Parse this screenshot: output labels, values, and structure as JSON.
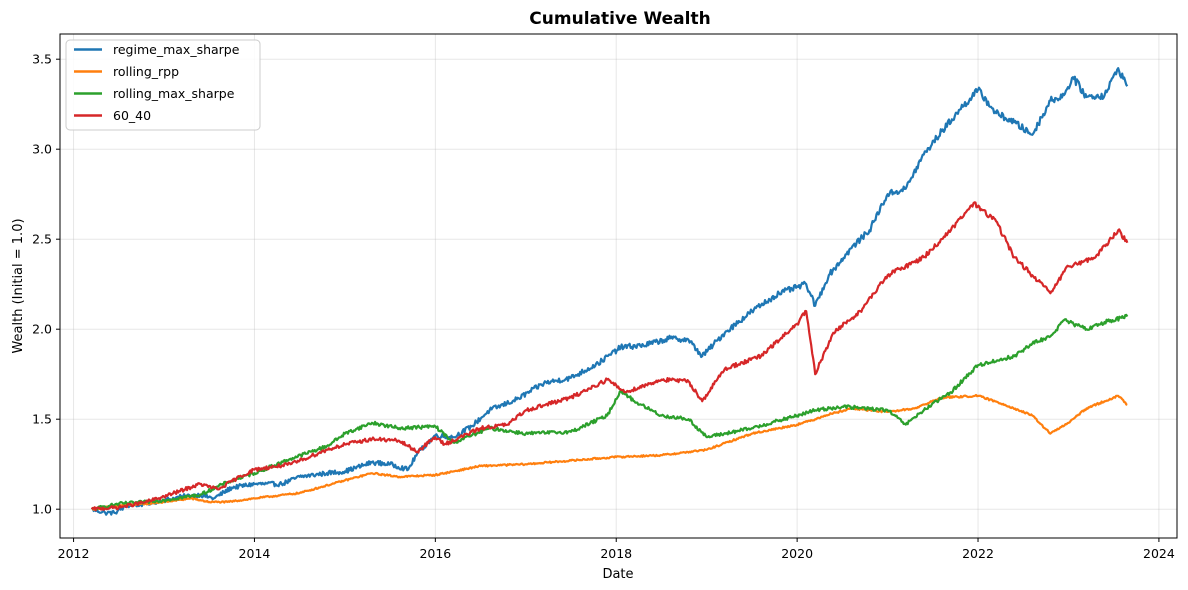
{
  "chart_data": {
    "type": "line",
    "title": "Cumulative Wealth",
    "xlabel": "Date",
    "ylabel": "Wealth (Initial = 1.0)",
    "xlim": [
      2011.85,
      2024.2
    ],
    "ylim": [
      0.84,
      3.64
    ],
    "x_ticks": [
      2012,
      2014,
      2016,
      2018,
      2020,
      2022,
      2024
    ],
    "y_ticks": [
      "1.0",
      "1.5",
      "2.0",
      "2.5",
      "3.0",
      "3.5"
    ],
    "grid": true,
    "legend_position": "top-left",
    "series": [
      {
        "name": "regime_max_sharpe",
        "color": "#1f77b4",
        "points": [
          [
            2012.2,
            1.0
          ],
          [
            2012.35,
            0.98
          ],
          [
            2012.45,
            0.98
          ],
          [
            2012.6,
            1.02
          ],
          [
            2012.8,
            1.03
          ],
          [
            2013.0,
            1.05
          ],
          [
            2013.2,
            1.07
          ],
          [
            2013.4,
            1.08
          ],
          [
            2013.55,
            1.06
          ],
          [
            2013.75,
            1.12
          ],
          [
            2014.0,
            1.14
          ],
          [
            2014.3,
            1.14
          ],
          [
            2014.5,
            1.18
          ],
          [
            2014.8,
            1.2
          ],
          [
            2015.0,
            1.21
          ],
          [
            2015.3,
            1.26
          ],
          [
            2015.5,
            1.25
          ],
          [
            2015.7,
            1.22
          ],
          [
            2015.8,
            1.31
          ],
          [
            2016.0,
            1.41
          ],
          [
            2016.2,
            1.4
          ],
          [
            2016.4,
            1.46
          ],
          [
            2016.6,
            1.55
          ],
          [
            2016.9,
            1.61
          ],
          [
            2017.2,
            1.7
          ],
          [
            2017.5,
            1.73
          ],
          [
            2017.8,
            1.81
          ],
          [
            2018.05,
            1.9
          ],
          [
            2018.3,
            1.91
          ],
          [
            2018.6,
            1.95
          ],
          [
            2018.8,
            1.94
          ],
          [
            2018.95,
            1.85
          ],
          [
            2019.2,
            1.98
          ],
          [
            2019.5,
            2.1
          ],
          [
            2019.8,
            2.2
          ],
          [
            2020.1,
            2.25
          ],
          [
            2020.2,
            2.13
          ],
          [
            2020.35,
            2.3
          ],
          [
            2020.6,
            2.45
          ],
          [
            2020.8,
            2.55
          ],
          [
            2021.0,
            2.75
          ],
          [
            2021.2,
            2.78
          ],
          [
            2021.4,
            2.97
          ],
          [
            2021.6,
            3.1
          ],
          [
            2021.8,
            3.22
          ],
          [
            2022.0,
            3.33
          ],
          [
            2022.2,
            3.2
          ],
          [
            2022.4,
            3.15
          ],
          [
            2022.6,
            3.08
          ],
          [
            2022.8,
            3.27
          ],
          [
            2022.95,
            3.3
          ],
          [
            2023.05,
            3.4
          ],
          [
            2023.2,
            3.29
          ],
          [
            2023.4,
            3.3
          ],
          [
            2023.55,
            3.45
          ],
          [
            2023.65,
            3.35
          ]
        ]
      },
      {
        "name": "rolling_rpp",
        "color": "#ff7f0e",
        "points": [
          [
            2012.2,
            1.0
          ],
          [
            2012.5,
            1.02
          ],
          [
            2012.8,
            1.03
          ],
          [
            2013.0,
            1.04
          ],
          [
            2013.3,
            1.06
          ],
          [
            2013.5,
            1.04
          ],
          [
            2013.7,
            1.04
          ],
          [
            2014.0,
            1.06
          ],
          [
            2014.5,
            1.09
          ],
          [
            2015.0,
            1.16
          ],
          [
            2015.3,
            1.2
          ],
          [
            2015.6,
            1.18
          ],
          [
            2016.0,
            1.19
          ],
          [
            2016.5,
            1.24
          ],
          [
            2017.0,
            1.25
          ],
          [
            2017.5,
            1.27
          ],
          [
            2018.0,
            1.29
          ],
          [
            2018.5,
            1.3
          ],
          [
            2019.0,
            1.33
          ],
          [
            2019.5,
            1.42
          ],
          [
            2020.0,
            1.47
          ],
          [
            2020.2,
            1.5
          ],
          [
            2020.3,
            1.52
          ],
          [
            2020.6,
            1.56
          ],
          [
            2021.0,
            1.54
          ],
          [
            2021.3,
            1.56
          ],
          [
            2021.6,
            1.62
          ],
          [
            2022.0,
            1.63
          ],
          [
            2022.3,
            1.58
          ],
          [
            2022.6,
            1.52
          ],
          [
            2022.8,
            1.42
          ],
          [
            2023.0,
            1.48
          ],
          [
            2023.2,
            1.56
          ],
          [
            2023.4,
            1.6
          ],
          [
            2023.55,
            1.63
          ],
          [
            2023.65,
            1.58
          ]
        ]
      },
      {
        "name": "rolling_max_sharpe",
        "color": "#2ca02c",
        "points": [
          [
            2012.2,
            1.0
          ],
          [
            2012.5,
            1.03
          ],
          [
            2012.8,
            1.04
          ],
          [
            2013.0,
            1.05
          ],
          [
            2013.4,
            1.08
          ],
          [
            2013.7,
            1.15
          ],
          [
            2014.0,
            1.2
          ],
          [
            2014.4,
            1.28
          ],
          [
            2014.8,
            1.35
          ],
          [
            2015.0,
            1.42
          ],
          [
            2015.3,
            1.48
          ],
          [
            2015.6,
            1.45
          ],
          [
            2016.0,
            1.46
          ],
          [
            2016.2,
            1.37
          ],
          [
            2016.6,
            1.45
          ],
          [
            2017.0,
            1.42
          ],
          [
            2017.5,
            1.43
          ],
          [
            2017.9,
            1.52
          ],
          [
            2018.05,
            1.66
          ],
          [
            2018.2,
            1.6
          ],
          [
            2018.5,
            1.52
          ],
          [
            2018.8,
            1.5
          ],
          [
            2019.0,
            1.4
          ],
          [
            2019.5,
            1.45
          ],
          [
            2020.0,
            1.52
          ],
          [
            2020.2,
            1.55
          ],
          [
            2020.5,
            1.57
          ],
          [
            2021.0,
            1.55
          ],
          [
            2021.2,
            1.47
          ],
          [
            2021.4,
            1.55
          ],
          [
            2021.7,
            1.65
          ],
          [
            2022.0,
            1.8
          ],
          [
            2022.4,
            1.85
          ],
          [
            2022.6,
            1.92
          ],
          [
            2022.8,
            1.96
          ],
          [
            2022.95,
            2.05
          ],
          [
            2023.2,
            2.0
          ],
          [
            2023.4,
            2.04
          ],
          [
            2023.65,
            2.07
          ]
        ]
      },
      {
        "name": "60_40",
        "color": "#d62728",
        "points": [
          [
            2012.2,
            1.0
          ],
          [
            2012.5,
            1.01
          ],
          [
            2012.8,
            1.04
          ],
          [
            2013.0,
            1.07
          ],
          [
            2013.4,
            1.14
          ],
          [
            2013.6,
            1.11
          ],
          [
            2013.8,
            1.17
          ],
          [
            2014.0,
            1.22
          ],
          [
            2014.4,
            1.25
          ],
          [
            2014.8,
            1.33
          ],
          [
            2015.0,
            1.36
          ],
          [
            2015.3,
            1.39
          ],
          [
            2015.6,
            1.38
          ],
          [
            2015.8,
            1.32
          ],
          [
            2016.0,
            1.4
          ],
          [
            2016.1,
            1.36
          ],
          [
            2016.5,
            1.45
          ],
          [
            2016.8,
            1.47
          ],
          [
            2017.0,
            1.55
          ],
          [
            2017.5,
            1.62
          ],
          [
            2017.9,
            1.72
          ],
          [
            2018.1,
            1.65
          ],
          [
            2018.5,
            1.72
          ],
          [
            2018.8,
            1.71
          ],
          [
            2018.95,
            1.6
          ],
          [
            2019.2,
            1.78
          ],
          [
            2019.6,
            1.85
          ],
          [
            2020.0,
            2.03
          ],
          [
            2020.1,
            2.1
          ],
          [
            2020.2,
            1.75
          ],
          [
            2020.4,
            1.98
          ],
          [
            2020.7,
            2.1
          ],
          [
            2021.0,
            2.3
          ],
          [
            2021.4,
            2.4
          ],
          [
            2021.7,
            2.55
          ],
          [
            2021.95,
            2.7
          ],
          [
            2022.2,
            2.6
          ],
          [
            2022.4,
            2.4
          ],
          [
            2022.6,
            2.3
          ],
          [
            2022.8,
            2.2
          ],
          [
            2023.0,
            2.35
          ],
          [
            2023.3,
            2.4
          ],
          [
            2023.55,
            2.55
          ],
          [
            2023.65,
            2.48
          ]
        ]
      }
    ]
  }
}
